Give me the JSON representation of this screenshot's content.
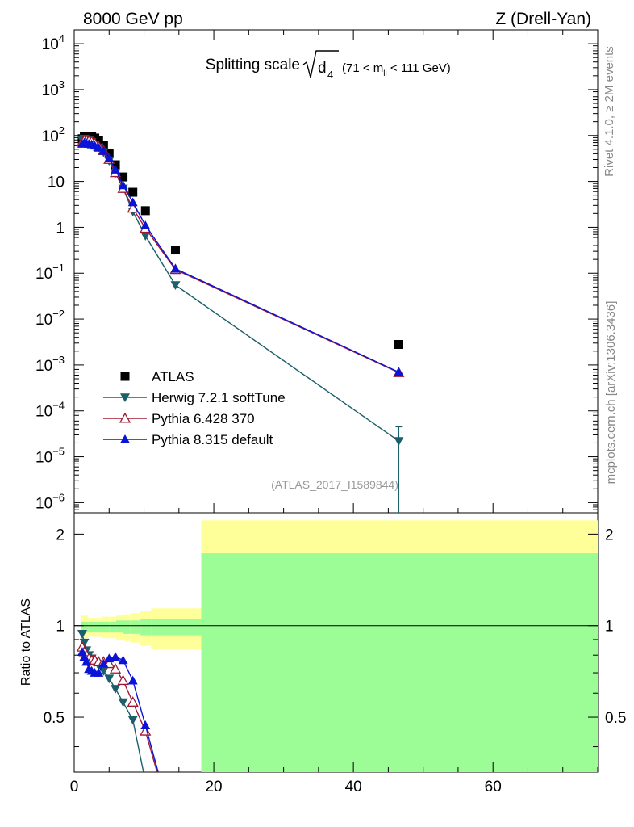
{
  "header": {
    "left": "8000 GeV pp",
    "right": "Z (Drell-Yan)"
  },
  "side_labels": {
    "rivet": "Rivet 4.1.0, ≥ 2M events",
    "mcplots": "mcplots.cern.ch [arXiv:1306.3436]"
  },
  "analysis_id": "(ATLAS_2017_I1589844)",
  "chart_data": [
    {
      "panel": "main",
      "type": "scatter",
      "title_main": "Splitting scale",
      "title_sub": "4",
      "title_range": "(71 < m",
      "title_range_sub": "ll",
      "title_range_end": " < 111 GeV)",
      "xscale": "linear",
      "yscale": "log",
      "xlim": [
        0,
        75
      ],
      "ylim": [
        6e-07,
        20000
      ],
      "ytick_labels": [
        {
          "value": 10000.0,
          "base": "10",
          "exp": "4"
        },
        {
          "value": 1000.0,
          "base": "10",
          "exp": "3"
        },
        {
          "value": 100.0,
          "base": "10",
          "exp": "2"
        },
        {
          "value": 10,
          "base": "10",
          "exp": ""
        },
        {
          "value": 1,
          "base": "1",
          "exp": ""
        },
        {
          "value": 0.1,
          "base": "10",
          "exp": "−1"
        },
        {
          "value": 0.01,
          "base": "10",
          "exp": "−2"
        },
        {
          "value": 0.001,
          "base": "10",
          "exp": "−3"
        },
        {
          "value": 0.0001,
          "base": "10",
          "exp": "−4"
        },
        {
          "value": 1e-05,
          "base": "10",
          "exp": "−5"
        },
        {
          "value": 1e-06,
          "base": "10",
          "exp": "−6"
        }
      ],
      "legend_position": "lower-left",
      "series": [
        {
          "name": "ATLAS",
          "marker": "square",
          "color": "#000000",
          "line": false,
          "x": [
            1.15,
            1.45,
            1.75,
            2.1,
            2.5,
            2.95,
            3.5,
            4.2,
            5.0,
            5.9,
            7.0,
            8.4,
            10.2,
            14.5,
            46.5
          ],
          "y": [
            85,
            95,
            97,
            97,
            96,
            88,
            78,
            62,
            40,
            23,
            12.5,
            5.8,
            2.3,
            0.32,
            0.0028
          ]
        },
        {
          "name": "Herwig 7.2.1 softTune",
          "marker": "triangle-down",
          "color": "#1a5f6a",
          "line": true,
          "x": [
            1.15,
            1.45,
            1.75,
            2.1,
            2.5,
            2.95,
            3.5,
            4.2,
            5.0,
            5.9,
            7.0,
            8.4,
            10.2,
            14.5,
            46.5
          ],
          "y": [
            80,
            85,
            82,
            78,
            72,
            64,
            55,
            43,
            28,
            15,
            7,
            2.2,
            0.65,
            0.055,
            2.2e-05
          ],
          "last_error_up": 4.5e-05
        },
        {
          "name": "Pythia 6.428 370",
          "marker": "triangle-up-open",
          "color": "#a01830",
          "line": true,
          "x": [
            1.15,
            1.45,
            1.75,
            2.1,
            2.5,
            2.95,
            3.5,
            4.2,
            5.0,
            5.9,
            7.0,
            8.4,
            10.2,
            14.5,
            46.5
          ],
          "y": [
            72,
            78,
            78,
            76,
            74,
            68,
            58,
            47,
            30,
            15.5,
            7,
            2.6,
            0.95,
            0.12,
            0.00068
          ]
        },
        {
          "name": "Pythia 8.315 default",
          "marker": "triangle-up",
          "color": "#0a14d8",
          "line": true,
          "x": [
            1.15,
            1.45,
            1.75,
            2.1,
            2.5,
            2.95,
            3.5,
            4.2,
            5.0,
            5.9,
            7.0,
            8.4,
            10.2,
            14.5,
            46.5
          ],
          "y": [
            66,
            70,
            68,
            66,
            64,
            60,
            54,
            46,
            32,
            18,
            8.2,
            3.5,
            1.1,
            0.125,
            0.0007
          ]
        }
      ]
    },
    {
      "panel": "ratio",
      "type": "line",
      "ylabel": "Ratio to ATLAS",
      "xlim": [
        0,
        75
      ],
      "ylim": [
        0.33,
        2.35
      ],
      "x_tick_labels": [
        "0",
        "20",
        "40",
        "60"
      ],
      "x_tick_values": [
        0,
        20,
        40,
        60
      ],
      "y_tick_labels": [
        "0.5",
        "1",
        "2"
      ],
      "y_tick_values": [
        0.5,
        1,
        2
      ],
      "reference_line": 1,
      "bands": {
        "edges": [
          1.0,
          2.0,
          3.0,
          4.0,
          5.0,
          6.0,
          7.0,
          8.0,
          9.5,
          11.0,
          18.2,
          75.0
        ],
        "total_up": [
          1.08,
          1.06,
          1.06,
          1.07,
          1.07,
          1.08,
          1.09,
          1.1,
          1.12,
          1.14,
          2.22
        ],
        "total_dn": [
          0.91,
          0.92,
          0.92,
          0.91,
          0.91,
          0.9,
          0.89,
          0.88,
          0.86,
          0.84,
          0.33
        ],
        "stat_up": [
          1.03,
          1.03,
          1.03,
          1.03,
          1.03,
          1.04,
          1.04,
          1.04,
          1.05,
          1.05,
          1.73
        ],
        "stat_dn": [
          0.95,
          0.95,
          0.95,
          0.95,
          0.95,
          0.95,
          0.94,
          0.94,
          0.93,
          0.93,
          0.33
        ],
        "total_color": "#ffff99",
        "stat_color": "#9cfc96"
      },
      "series": [
        {
          "name": "Herwig 7.2.1 softTune",
          "color": "#1a5f6a",
          "marker": "triangle-down",
          "x": [
            1.15,
            1.45,
            1.75,
            2.1,
            2.5,
            2.95,
            3.5,
            4.2,
            5.0,
            5.9,
            7.0,
            8.4
          ],
          "y": [
            0.94,
            0.88,
            0.83,
            0.8,
            0.78,
            0.76,
            0.74,
            0.71,
            0.67,
            0.62,
            0.56,
            0.49
          ]
        },
        {
          "name": "Pythia 6.428 370",
          "color": "#a01830",
          "marker": "triangle-up-open",
          "x": [
            1.15,
            1.45,
            1.75,
            2.1,
            2.5,
            2.95,
            3.5,
            4.2,
            5.0,
            5.9,
            7.0,
            8.4,
            10.2
          ],
          "y": [
            0.85,
            0.82,
            0.8,
            0.78,
            0.77,
            0.77,
            0.76,
            0.76,
            0.75,
            0.72,
            0.66,
            0.56,
            0.45
          ]
        },
        {
          "name": "Pythia 8.315 default",
          "color": "#0a14d8",
          "marker": "triangle-up",
          "x": [
            1.15,
            1.45,
            1.75,
            2.1,
            2.5,
            2.95,
            3.5,
            4.2,
            5.0,
            5.9,
            7.0,
            8.4,
            10.2
          ],
          "y": [
            0.82,
            0.79,
            0.76,
            0.72,
            0.71,
            0.7,
            0.7,
            0.75,
            0.78,
            0.79,
            0.77,
            0.66,
            0.47
          ]
        }
      ]
    }
  ]
}
